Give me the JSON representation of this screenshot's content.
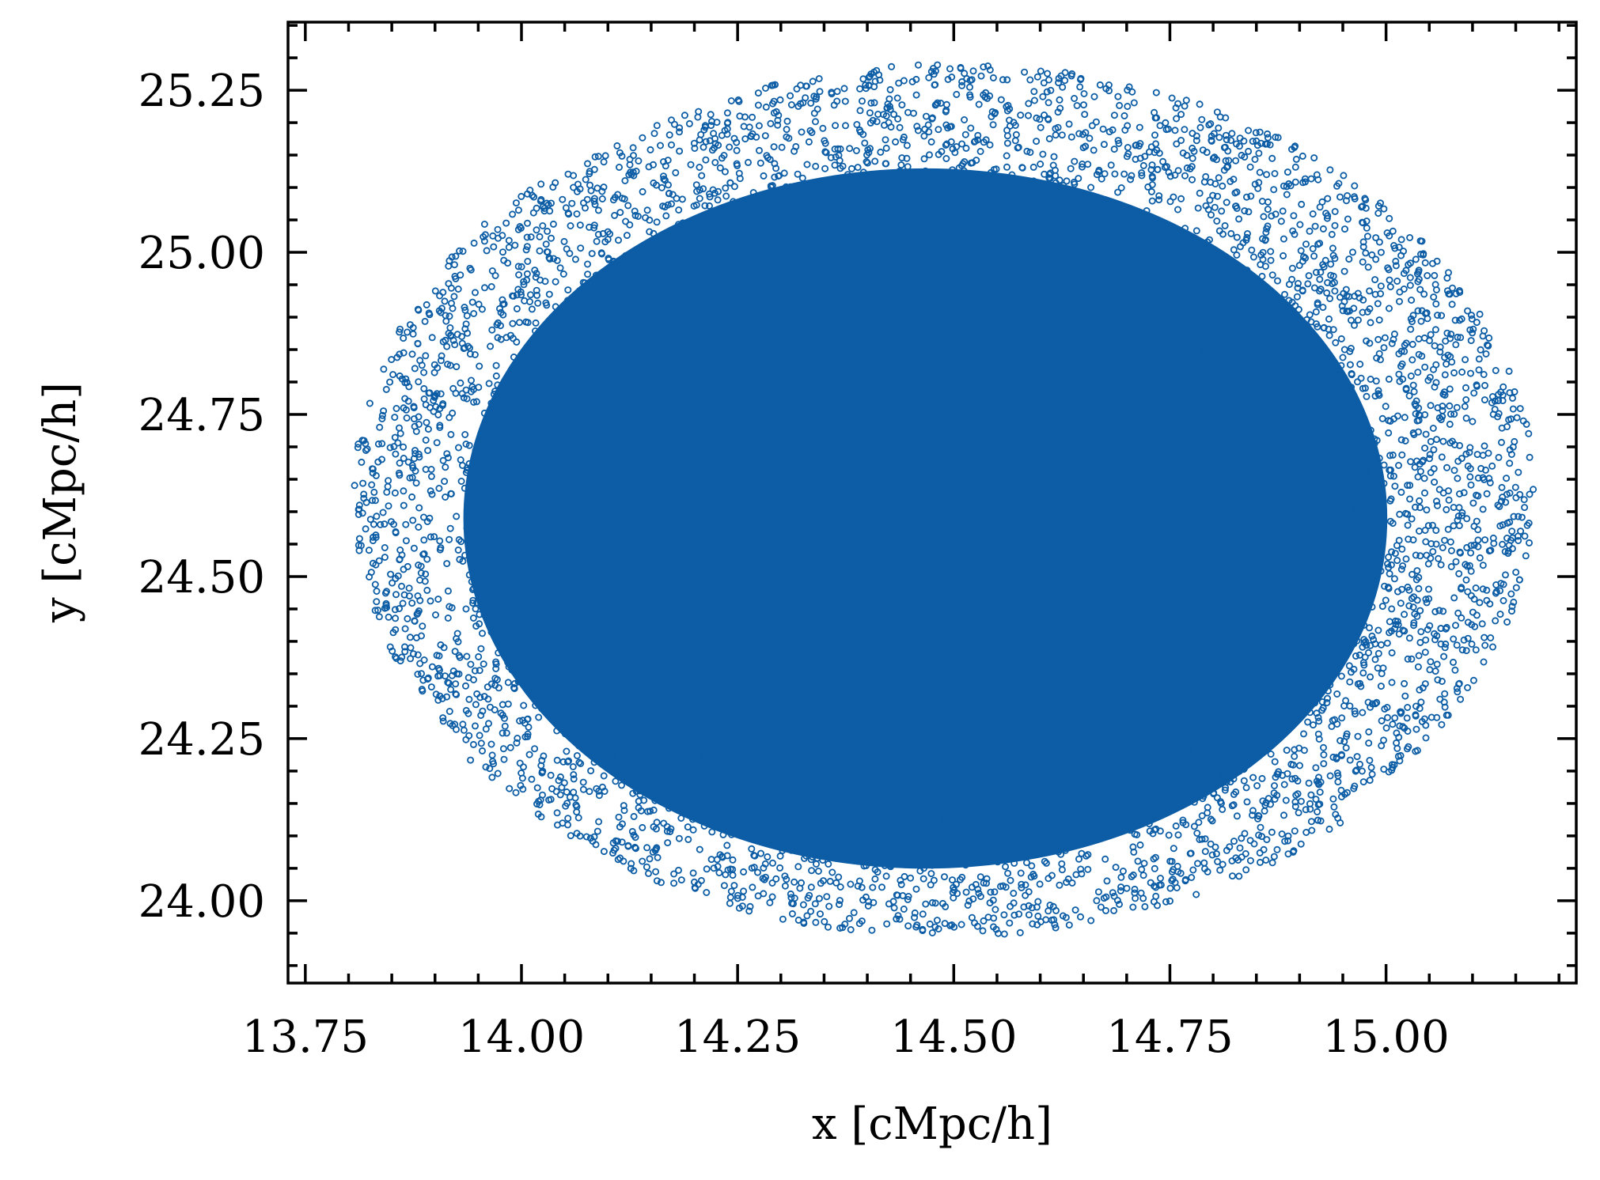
{
  "chart_data": {
    "type": "scatter",
    "xlabel": "x [cMpc/h]",
    "ylabel": "y [cMpc/h]",
    "xlim": [
      13.73,
      15.22
    ],
    "ylim": [
      23.873,
      25.355
    ],
    "xticks": [
      "13.75",
      "14.00",
      "14.25",
      "14.50",
      "14.75",
      "15.00"
    ],
    "yticks": [
      "24.00",
      "24.25",
      "24.50",
      "24.75",
      "25.00",
      "25.25"
    ],
    "xminor_step": 0.05,
    "yminor_step": 0.05,
    "grid": false,
    "legend": "none",
    "marker": "open-circle",
    "color": "#0C5DA5",
    "series": [
      {
        "distribution": "dense elliptical cloud of particles",
        "x_extent": [
          13.8,
          15.17
        ],
        "y_extent": [
          23.94,
          25.29
        ],
        "center": [
          14.49,
          24.62
        ]
      }
    ]
  }
}
